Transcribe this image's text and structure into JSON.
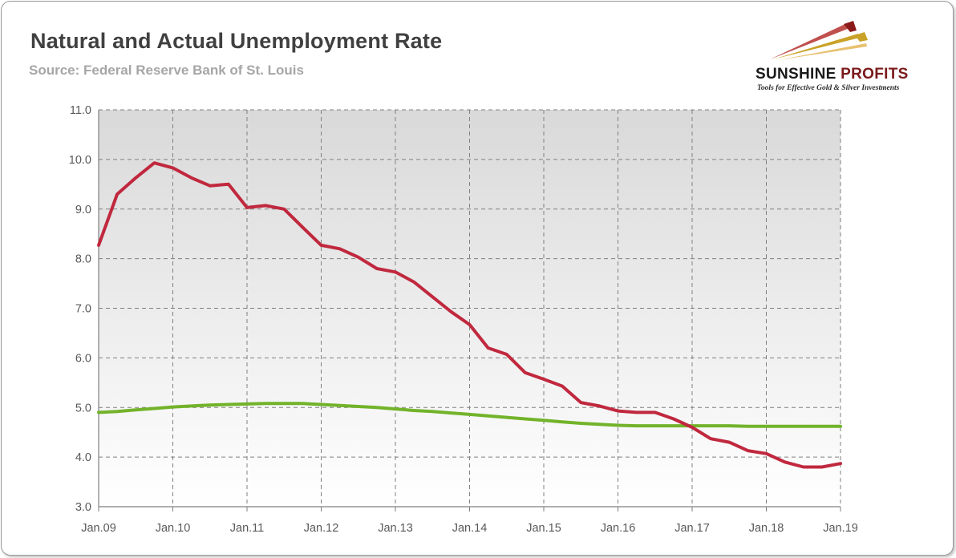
{
  "header": {
    "title": "Natural and Actual Unemployment Rate",
    "subtitle": "Source: Federal Reserve Bank of St. Louis"
  },
  "logo": {
    "name_part1": "SUNSHINE",
    "name_part2": " PROFITS",
    "tagline": "Tools for Effective Gold & Silver Investments",
    "colors": [
      "#c9a227",
      "#c0504d",
      "#e8c170"
    ]
  },
  "chart_data": {
    "type": "line",
    "x": [
      "2009-01",
      "2009-04",
      "2009-07",
      "2009-10",
      "2010-01",
      "2010-04",
      "2010-07",
      "2010-10",
      "2011-01",
      "2011-04",
      "2011-07",
      "2011-10",
      "2012-01",
      "2012-04",
      "2012-07",
      "2012-10",
      "2013-01",
      "2013-04",
      "2013-07",
      "2013-10",
      "2014-01",
      "2014-04",
      "2014-07",
      "2014-10",
      "2015-01",
      "2015-04",
      "2015-07",
      "2015-10",
      "2016-01",
      "2016-04",
      "2016-07",
      "2016-10",
      "2017-01",
      "2017-04",
      "2017-07",
      "2017-10",
      "2018-01",
      "2018-04",
      "2018-07",
      "2018-10",
      "2019-01"
    ],
    "x_tick_labels": [
      "Jan.09",
      "Jan.10",
      "Jan.11",
      "Jan.12",
      "Jan.13",
      "Jan.14",
      "Jan.15",
      "Jan.16",
      "Jan.17",
      "Jan.18",
      "Jan.19"
    ],
    "ylim": [
      3.0,
      11.0
    ],
    "y_ticks": [
      "3.0",
      "4.0",
      "5.0",
      "6.0",
      "7.0",
      "8.0",
      "9.0",
      "10.0",
      "11.0"
    ],
    "grid": true,
    "series": [
      {
        "color": "#c0283e",
        "values": [
          8.27,
          9.3,
          9.63,
          9.93,
          9.83,
          9.63,
          9.47,
          9.5,
          9.03,
          9.07,
          9.0,
          8.63,
          8.27,
          8.2,
          8.03,
          7.8,
          7.73,
          7.53,
          7.23,
          6.93,
          6.67,
          6.2,
          6.07,
          5.7,
          5.57,
          5.43,
          5.1,
          5.03,
          4.93,
          4.9,
          4.9,
          4.77,
          4.6,
          4.37,
          4.3,
          4.13,
          4.07,
          3.9,
          3.8,
          3.8,
          3.87
        ]
      },
      {
        "color": "#72b32a",
        "values": [
          4.9,
          4.92,
          4.95,
          4.98,
          5.01,
          5.03,
          5.05,
          5.06,
          5.07,
          5.08,
          5.08,
          5.08,
          5.06,
          5.04,
          5.02,
          5.0,
          4.97,
          4.94,
          4.92,
          4.89,
          4.86,
          4.83,
          4.8,
          4.77,
          4.74,
          4.71,
          4.68,
          4.66,
          4.64,
          4.63,
          4.63,
          4.63,
          4.63,
          4.63,
          4.63,
          4.62,
          4.62,
          4.62,
          4.62,
          4.62,
          4.62
        ]
      }
    ]
  }
}
